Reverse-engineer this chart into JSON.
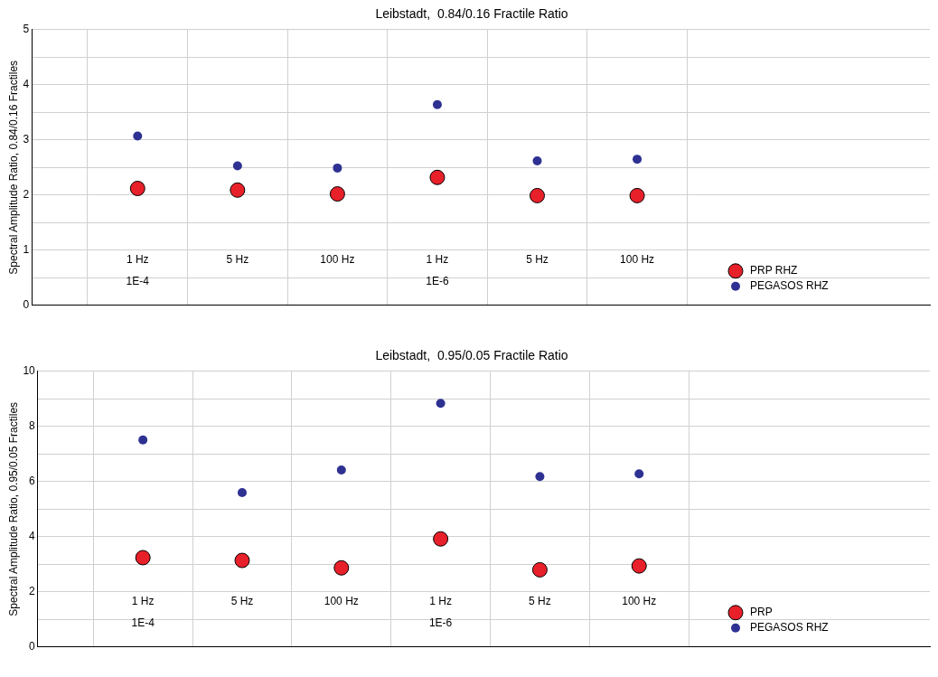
{
  "chart_data": [
    {
      "type": "scatter",
      "title": "Leibstadt,  0.84/0.16 Fractile Ratio",
      "ylabel": "Spectral Amplitude Ratio, 0.84/0.16 Fractiles",
      "categories": [
        "1 Hz",
        "5 Hz",
        "100 Hz",
        "1 Hz",
        "5 Hz",
        "100 Hz"
      ],
      "series": [
        {
          "name": "PRP RHZ",
          "color": "#e8202a",
          "values": [
            2.12,
            2.09,
            2.02,
            2.32,
            1.99,
            1.99
          ]
        },
        {
          "name": "PEGASOS RHZ",
          "color": "#2e3192",
          "values": [
            3.07,
            2.53,
            2.49,
            3.64,
            2.62,
            2.65
          ]
        }
      ],
      "annotations": [
        "1E-4",
        "1E-6"
      ],
      "ylim": [
        0,
        5
      ],
      "yticks": [
        0,
        {
          "value": 0.5,
          "label": null
        },
        1,
        {
          "value": 1.5,
          "label": null
        },
        2,
        {
          "value": 2.5,
          "label": null
        },
        3,
        {
          "value": 3.5,
          "label": null
        },
        4,
        {
          "value": 4.5,
          "label": null
        },
        5
      ],
      "grid": true,
      "legend": "bottom right",
      "marker": "circle"
    },
    {
      "type": "scatter",
      "title": "Leibstadt,  0.95/0.05 Fractile Ratio",
      "ylabel": "Spectral Amplitude Ratio, 0.95/0.05 Fractiles",
      "categories": [
        "1 Hz",
        "5 Hz",
        "100 Hz",
        "1 Hz",
        "5 Hz",
        "100 Hz"
      ],
      "series": [
        {
          "name": "PRP",
          "color": "#e8202a",
          "values": [
            3.24,
            3.14,
            2.87,
            3.92,
            2.8,
            2.94
          ]
        },
        {
          "name": "PEGASOS RHZ",
          "color": "#2e3192",
          "values": [
            7.51,
            5.6,
            6.42,
            8.84,
            6.18,
            6.28
          ]
        }
      ],
      "annotations": [
        "1E-4",
        "1E-6"
      ],
      "ylim": [
        0,
        10
      ],
      "yticks": [
        0,
        {
          "value": 1,
          "label": null
        },
        2,
        {
          "value": 3,
          "label": null
        },
        4,
        {
          "value": 5,
          "label": null
        },
        6,
        {
          "value": 7,
          "label": null
        },
        8,
        {
          "value": 9,
          "label": null
        },
        10
      ],
      "grid": true,
      "legend": "bottom right",
      "marker": "circle"
    }
  ]
}
